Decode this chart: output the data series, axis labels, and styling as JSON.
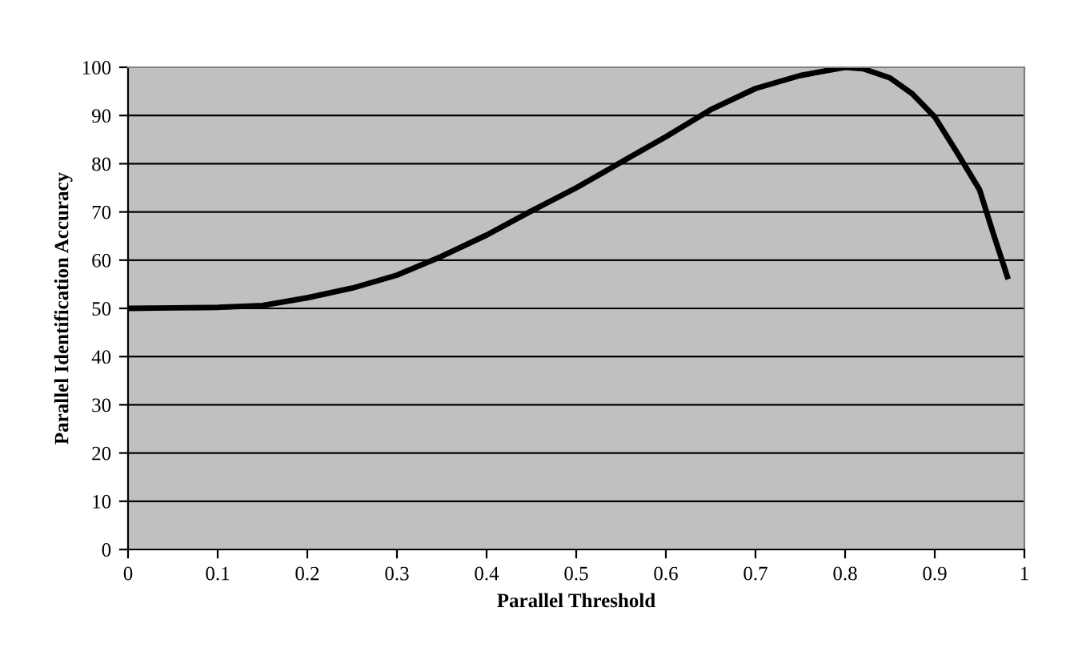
{
  "chart_data": {
    "type": "line",
    "xlabel": "Parallel Threshold",
    "ylabel": "Parallel Identification Accuracy",
    "x": [
      0,
      0.05,
      0.1,
      0.15,
      0.2,
      0.25,
      0.3,
      0.35,
      0.4,
      0.45,
      0.5,
      0.55,
      0.6,
      0.65,
      0.7,
      0.75,
      0.8,
      0.82,
      0.85,
      0.875,
      0.9,
      0.925,
      0.95,
      0.965,
      0.981
    ],
    "series": [
      {
        "color": "#000000",
        "values": [
          50,
          50.1,
          50.2,
          50.6,
          52.2,
          54.2,
          56.9,
          60.8,
          65.2,
          70.2,
          75,
          80.3,
          85.6,
          91.2,
          95.6,
          98.3,
          100,
          99.7,
          97.8,
          94.5,
          89.7,
          82.3,
          74.6,
          65.7,
          56.6
        ]
      }
    ],
    "xlim": [
      0,
      1
    ],
    "xticks": [
      0,
      0.1,
      0.2,
      0.3,
      0.4,
      0.5,
      0.6,
      0.7,
      0.8,
      0.9,
      1
    ],
    "ylim": [
      0,
      100
    ],
    "yticks": [
      0,
      10,
      20,
      30,
      40,
      50,
      60,
      70,
      80,
      90,
      100
    ],
    "grid": "y",
    "legend": false,
    "marker": "none",
    "line_style": "solid"
  }
}
